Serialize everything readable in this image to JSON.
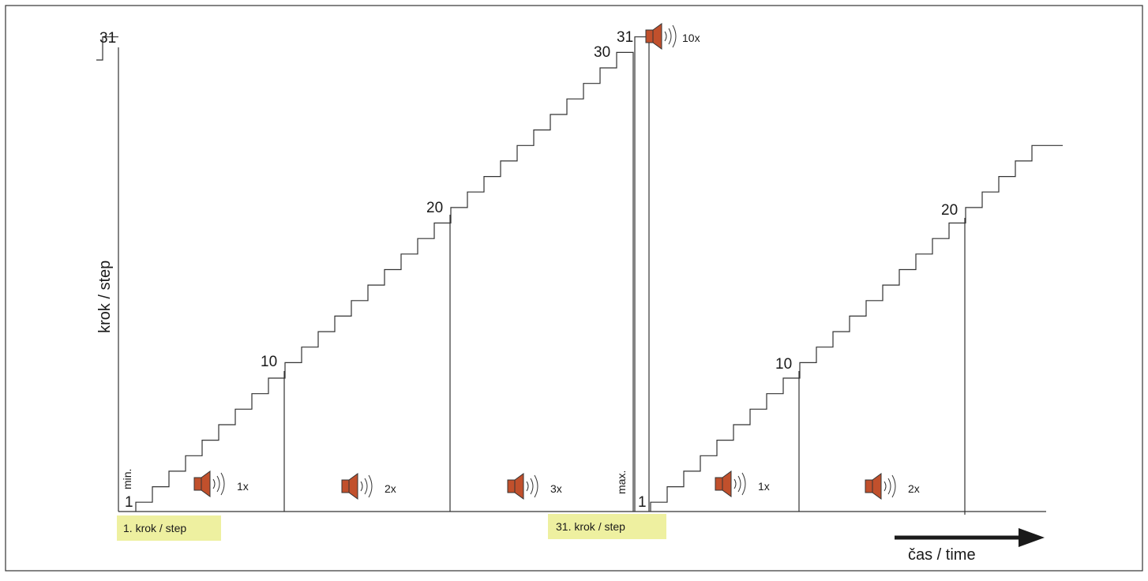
{
  "axis": {
    "y_label": "krok / step",
    "x_label": "čas / time"
  },
  "markers": {
    "min": "min.",
    "max": "max."
  },
  "boxes": {
    "first": "1. krok / step",
    "last": "31. krok / step"
  },
  "phase1": {
    "from_step": 1,
    "to_step": 30,
    "labels": {
      "l1": "1",
      "l10": "10",
      "l20": "20",
      "l30": "30"
    }
  },
  "peak": {
    "step": 31,
    "label": "31",
    "beeps": "10x"
  },
  "start_level": {
    "step": 31,
    "label": "31"
  },
  "phase2": {
    "from_step": 1,
    "to_step": 24,
    "labels": {
      "l1": "1",
      "l10": "10",
      "l20": "20"
    }
  },
  "beep_groups": [
    {
      "count": "1x"
    },
    {
      "count": "2x"
    },
    {
      "count": "3x"
    },
    {
      "count": "1x"
    },
    {
      "count": "2x"
    }
  ],
  "colors": {
    "line": "#333333",
    "speaker": "#c1502c",
    "highlight": "#eef0a0",
    "arrow": "#1a1a1a"
  },
  "icons": {
    "speaker": "speaker-icon",
    "arrow": "arrow-right-icon"
  }
}
